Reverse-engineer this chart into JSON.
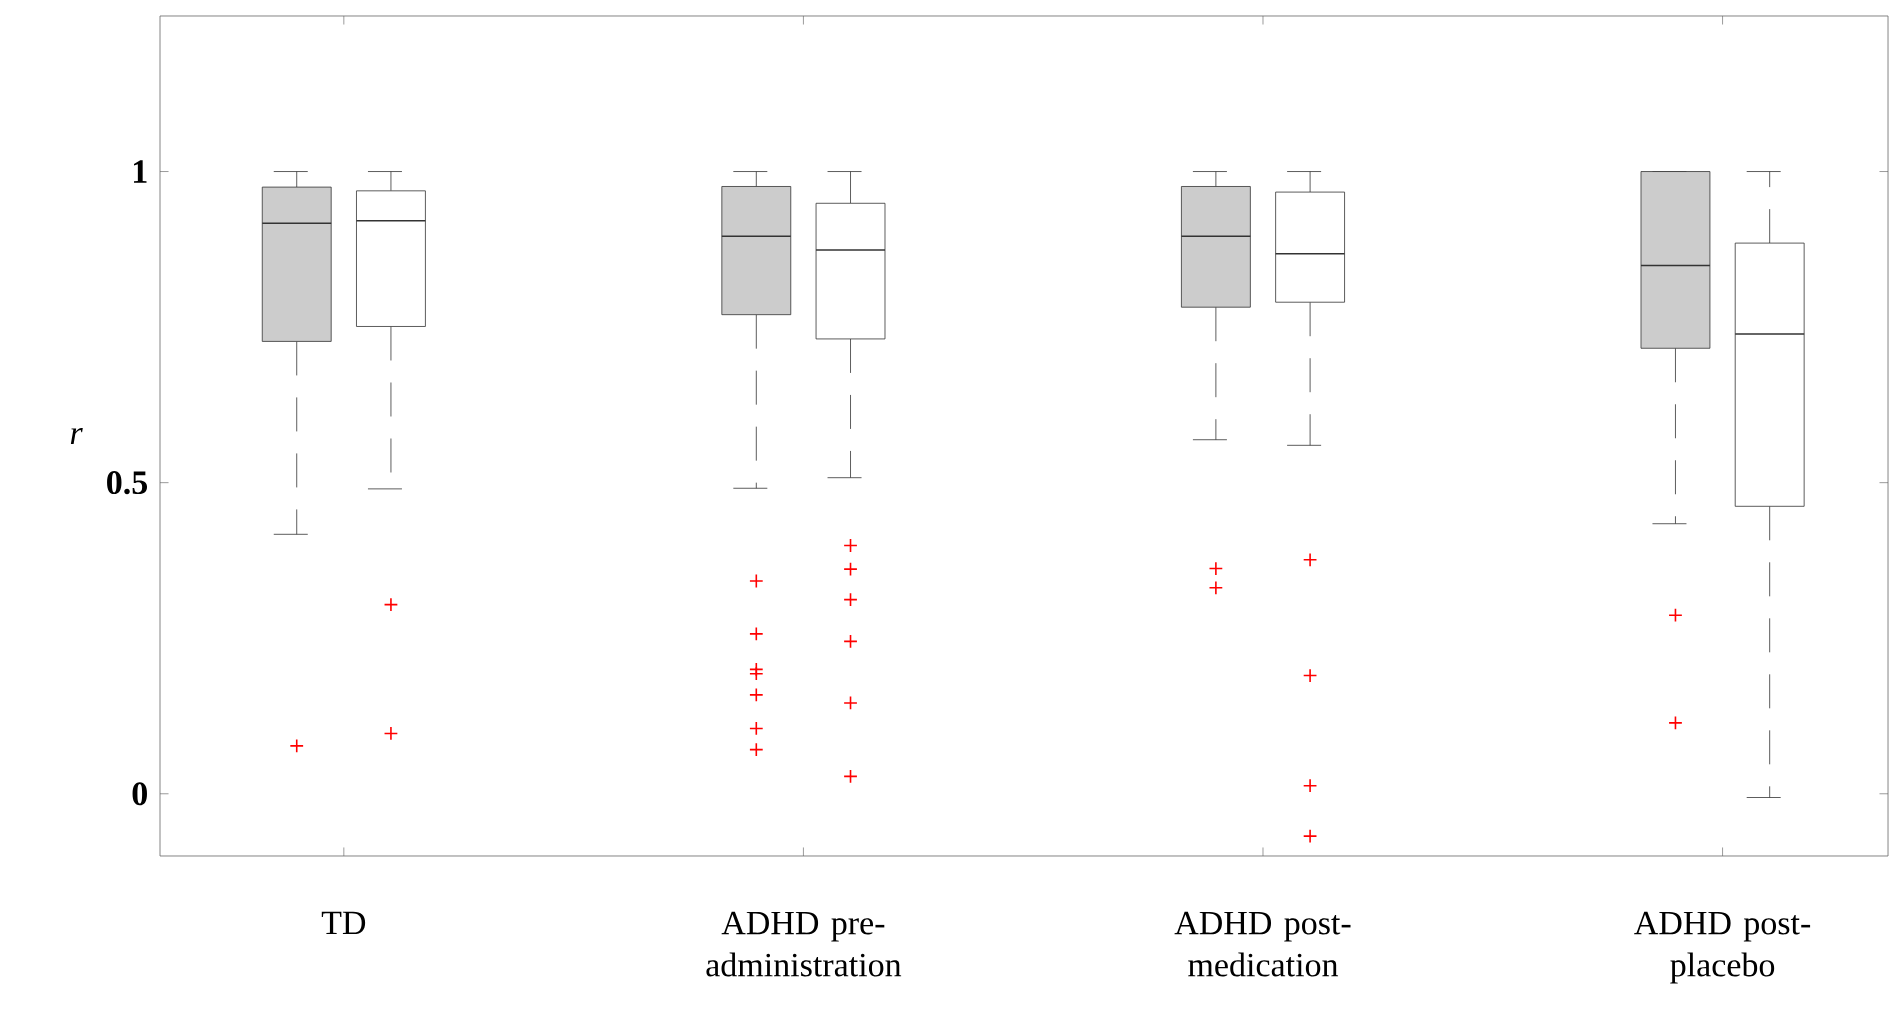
{
  "chart_data": {
    "type": "box",
    "ylabel": "r",
    "categories": [
      "TD",
      "ADHD pre-administration",
      "ADHD post-medication",
      "ADHD post-placebo"
    ],
    "ylim": [
      -0.1,
      1.25
    ],
    "yticks": [
      0,
      0.5,
      1
    ],
    "marker": "cross",
    "line_style": "dashed",
    "series": [
      {
        "color": "#cccccc",
        "boxes": [
          {
            "low": 0.417,
            "q1": 0.727,
            "median": 0.917,
            "q3": 0.975,
            "high": 1.0,
            "outliers": [
              0.077
            ]
          },
          {
            "low": 0.491,
            "q1": 0.77,
            "median": 0.896,
            "q3": 0.976,
            "high": 1.0,
            "outliers": [
              0.342,
              0.257,
              0.2,
              0.193,
              0.159,
              0.105,
              0.071
            ]
          },
          {
            "low": 0.569,
            "q1": 0.782,
            "median": 0.896,
            "q3": 0.976,
            "high": 1.0,
            "outliers": [
              0.362,
              0.331
            ]
          },
          {
            "low": 0.434,
            "q1": 0.716,
            "median": 0.849,
            "q3": 1.0,
            "high": 1.0,
            "outliers": [
              0.287,
              0.114
            ]
          }
        ]
      },
      {
        "color": "#ffffff",
        "boxes": [
          {
            "low": 0.49,
            "q1": 0.751,
            "median": 0.921,
            "q3": 0.969,
            "high": 1.0,
            "outliers": [
              0.304,
              0.097
            ]
          },
          {
            "low": 0.508,
            "q1": 0.731,
            "median": 0.874,
            "q3": 0.949,
            "high": 1.0,
            "outliers": [
              0.399,
              0.361,
              0.312,
              0.245,
              0.146,
              0.028
            ]
          },
          {
            "low": 0.56,
            "q1": 0.79,
            "median": 0.868,
            "q3": 0.967,
            "high": 1.0,
            "outliers": [
              0.376,
              0.19,
              0.013,
              -0.068
            ]
          },
          {
            "low": -0.006,
            "q1": 0.462,
            "median": 0.739,
            "q3": 0.885,
            "high": 1.0
          }
        ]
      }
    ]
  }
}
